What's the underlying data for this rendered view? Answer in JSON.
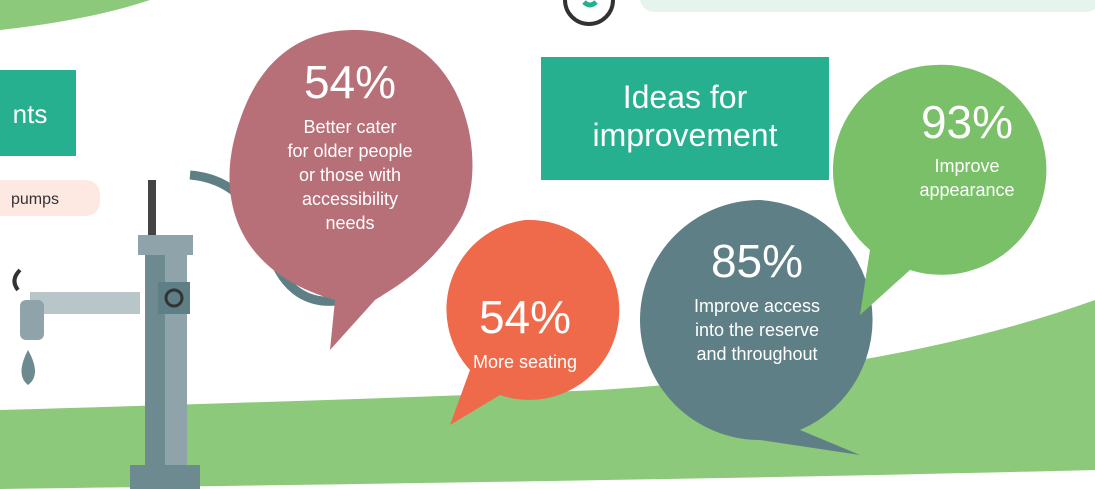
{
  "header": {
    "cropped_heading": "nts",
    "cropped_pill": "pumps"
  },
  "panel": {
    "title_lines": [
      "Ideas for",
      "improvement"
    ]
  },
  "bubbles": [
    {
      "percent": "54%",
      "lines": [
        "Better cater",
        "for older people",
        "or those with",
        "accessibility",
        "needs"
      ]
    },
    {
      "percent": "54%",
      "lines": [
        "More seating"
      ]
    },
    {
      "percent": "85%",
      "lines": [
        "Improve access",
        "into the reserve",
        "and throughout"
      ]
    },
    {
      "percent": "93%",
      "lines": [
        "Improve",
        "appearance"
      ]
    }
  ]
}
